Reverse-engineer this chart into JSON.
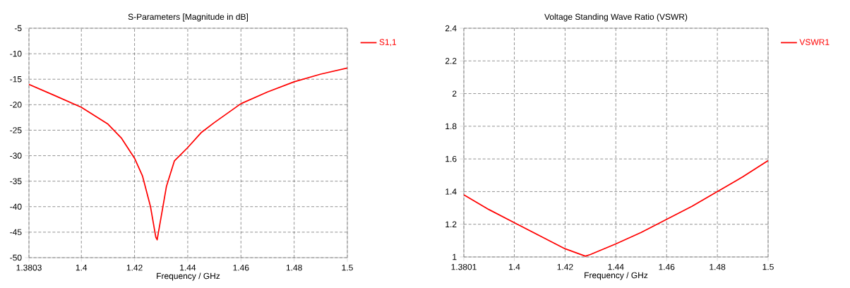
{
  "chart_data": [
    {
      "type": "line",
      "title": "S-Parameters [Magnitude in dB]",
      "xlabel": "Frequency / GHz",
      "xlim": [
        1.3803,
        1.5
      ],
      "xticks": [
        1.3803,
        1.4,
        1.42,
        1.44,
        1.46,
        1.48,
        1.5
      ],
      "ylim": [
        -50,
        -5
      ],
      "yticks": [
        -50,
        -45,
        -40,
        -35,
        -30,
        -25,
        -20,
        -15,
        -10,
        -5
      ],
      "grid": true,
      "legend": "top right",
      "line_style": "solid",
      "series": [
        {
          "name": "S1,1",
          "color": "#ff0000",
          "x": [
            1.3803,
            1.39,
            1.4,
            1.41,
            1.415,
            1.42,
            1.423,
            1.426,
            1.428,
            1.4285,
            1.43,
            1.432,
            1.435,
            1.44,
            1.445,
            1.45,
            1.46,
            1.47,
            1.48,
            1.49,
            1.5
          ],
          "values": [
            -16,
            -18.2,
            -20.5,
            -23.8,
            -26.5,
            -30.5,
            -34,
            -40,
            -46,
            -46.5,
            -42,
            -36,
            -31,
            -28.4,
            -25.5,
            -23.5,
            -19.8,
            -17.5,
            -15.5,
            -14,
            -12.8
          ]
        }
      ]
    },
    {
      "type": "line",
      "title": "Voltage Standing Wave Ratio (VSWR)",
      "xlabel": "Frequency / GHz",
      "xlim": [
        1.3801,
        1.5
      ],
      "xticks": [
        1.3801,
        1.4,
        1.42,
        1.44,
        1.46,
        1.48,
        1.5
      ],
      "ylim": [
        1,
        2.4
      ],
      "yticks": [
        1,
        1.2,
        1.4,
        1.6,
        1.8,
        2,
        2.2,
        2.4
      ],
      "grid": true,
      "legend": "top right",
      "line_style": "solid",
      "series": [
        {
          "name": "VSWR1",
          "color": "#ff0000",
          "x": [
            1.3801,
            1.39,
            1.4,
            1.41,
            1.42,
            1.428,
            1.43,
            1.44,
            1.45,
            1.46,
            1.47,
            1.48,
            1.49,
            1.5
          ],
          "values": [
            1.38,
            1.29,
            1.21,
            1.13,
            1.05,
            1.005,
            1.015,
            1.08,
            1.15,
            1.23,
            1.31,
            1.4,
            1.49,
            1.59
          ]
        }
      ]
    }
  ]
}
